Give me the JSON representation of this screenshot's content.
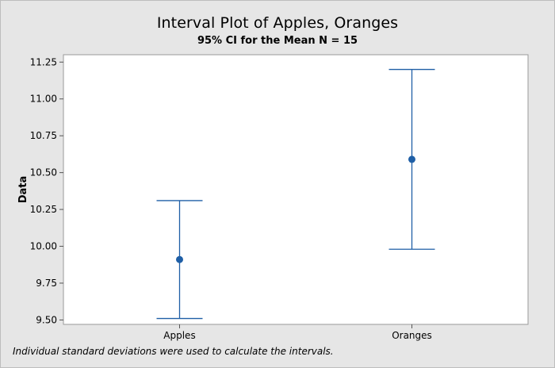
{
  "colors": {
    "background": "#e6e6e6",
    "plot_area": "#ffffff",
    "series": "#1f5fa6"
  },
  "footnote": "Individual standard deviations were used to calculate the intervals.",
  "chart_data": {
    "type": "interval",
    "title": "Interval Plot of Apples, Oranges",
    "subtitle": "95% CI for the Mean  N = 15",
    "xlabel": "",
    "ylabel": "Data",
    "categories": [
      "Apples",
      "Oranges"
    ],
    "means": [
      9.91,
      10.59
    ],
    "lower": [
      9.51,
      9.98
    ],
    "upper": [
      10.31,
      11.2
    ],
    "ylim": [
      9.47,
      11.3
    ],
    "yticks": [
      9.5,
      9.75,
      10.0,
      10.25,
      10.5,
      10.75,
      11.0,
      11.25
    ],
    "ytick_labels": [
      "9.50",
      "9.75",
      "10.00",
      "10.25",
      "10.50",
      "10.75",
      "11.00",
      "11.25"
    ],
    "grid": false,
    "legend": "none"
  }
}
